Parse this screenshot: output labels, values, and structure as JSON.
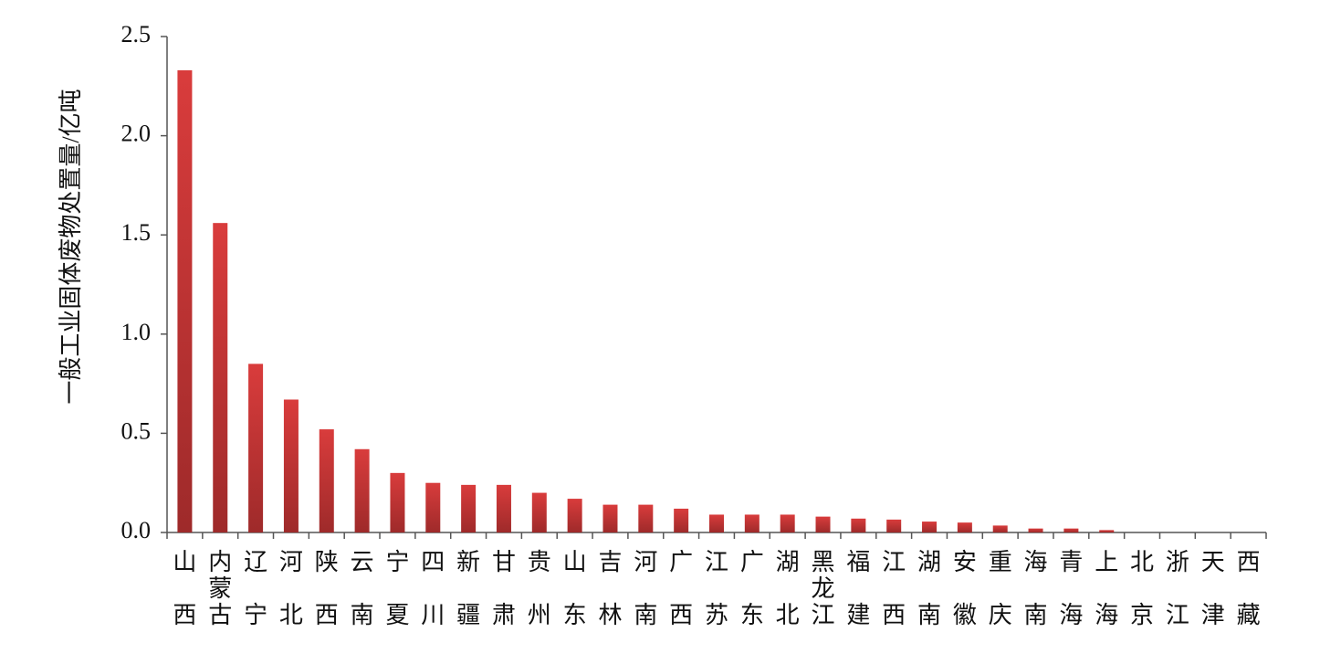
{
  "chart_data": {
    "type": "bar",
    "y_label": "一般工业固体废物处置量/亿吨",
    "categories": [
      "山西",
      "内蒙古",
      "辽宁",
      "河北",
      "陕西",
      "云南",
      "宁夏",
      "四川",
      "新疆",
      "甘肃",
      "贵州",
      "山东",
      "吉林",
      "河南",
      "广西",
      "江苏",
      "广东",
      "湖北",
      "黑龙江",
      "福建",
      "江西",
      "湖南",
      "安徽",
      "重庆",
      "海南",
      "青海",
      "上海",
      "北京",
      "浙江",
      "天津",
      "西藏"
    ],
    "values": [
      2.33,
      1.56,
      0.85,
      0.67,
      0.52,
      0.42,
      0.3,
      0.25,
      0.24,
      0.24,
      0.2,
      0.17,
      0.14,
      0.14,
      0.12,
      0.09,
      0.09,
      0.09,
      0.08,
      0.07,
      0.065,
      0.055,
      0.05,
      0.035,
      0.02,
      0.02,
      0.012,
      0,
      0,
      0,
      0
    ],
    "color": "#d43a3a",
    "ylim": [
      0,
      2.5
    ],
    "yticks": [
      {
        "value": 0,
        "label": "0.0"
      },
      {
        "value": 0.5,
        "label": "0.5"
      },
      {
        "value": 1,
        "label": "1.0"
      },
      {
        "value": 1.5,
        "label": "1.5"
      },
      {
        "value": 2,
        "label": "2.0"
      },
      {
        "value": 2.5,
        "label": "2.5"
      }
    ]
  }
}
